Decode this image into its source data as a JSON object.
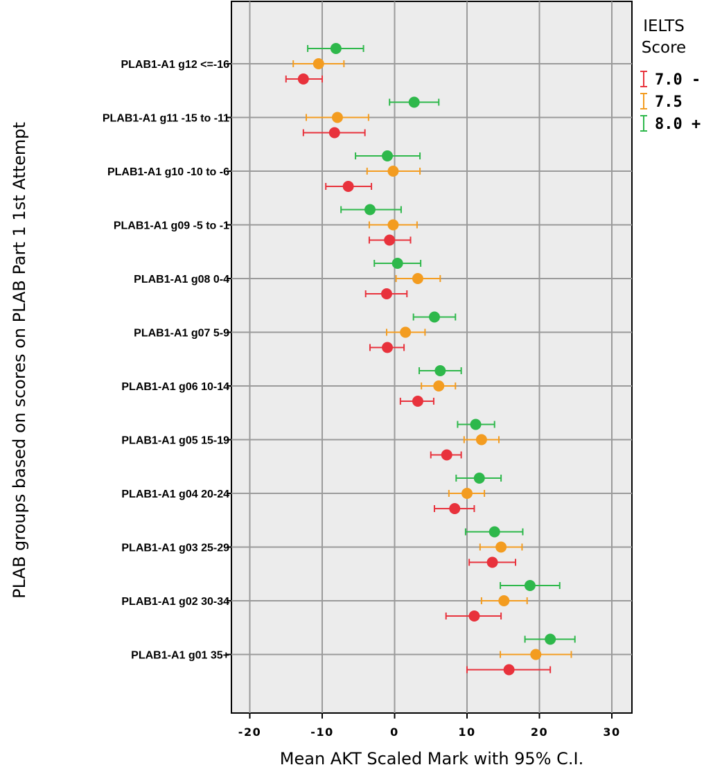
{
  "chart_data": {
    "type": "scatter",
    "subtype": "dot-errorbar",
    "xlabel": "Mean AKT Scaled Mark with 95% C.I.",
    "ylabel": "PLAB groups based on scores on PLAB Part 1 1st Attempt",
    "xlim": [
      -22.8,
      32.5
    ],
    "xticks": [
      -20,
      -10,
      0,
      10,
      20,
      30
    ],
    "xtick_labels": [
      "-20",
      "-10",
      "0",
      "10",
      "20",
      "30"
    ],
    "grid": true,
    "legend": {
      "title_line1": "IELTS",
      "title_line2": "Score",
      "placement": "right"
    },
    "categories": [
      "PLAB1-A1 g12 <=-16",
      "PLAB1-A1 g11 -15 to -11",
      "PLAB1-A1 g10 -10 to -6",
      "PLAB1-A1 g09 -5 to -1",
      "PLAB1-A1 g08 0-4",
      "PLAB1-A1 g07 5-9",
      "PLAB1-A1 g06 10-14",
      "PLAB1-A1 g05 15-19",
      "PLAB1-A1 g04 20-24",
      "PLAB1-A1 g03 25-29",
      "PLAB1-A1 g02 30-34",
      "PLAB1-A1 g01 35+"
    ],
    "series": [
      {
        "name": "7.0 -",
        "color": "#e8323c",
        "mean": [
          -12.6,
          -8.3,
          -6.4,
          -0.7,
          -1.1,
          -1.0,
          3.2,
          7.2,
          8.3,
          13.5,
          11.0,
          15.8
        ],
        "lower": [
          -15.0,
          -12.6,
          -9.5,
          -3.5,
          -4.0,
          -3.4,
          0.8,
          5.0,
          5.5,
          10.3,
          7.1,
          10.0
        ],
        "upper": [
          -10.0,
          -4.1,
          -3.2,
          2.2,
          1.7,
          1.3,
          5.4,
          9.2,
          11.0,
          16.7,
          14.7,
          21.5
        ]
      },
      {
        "name": "7.5",
        "color": "#f39c20",
        "mean": [
          -10.5,
          -7.9,
          -0.2,
          -0.2,
          3.2,
          1.5,
          6.1,
          12.0,
          10.0,
          14.7,
          15.1,
          19.5
        ],
        "lower": [
          -14.0,
          -12.2,
          -3.8,
          -3.5,
          0.2,
          -1.1,
          3.7,
          9.6,
          7.5,
          11.8,
          12.0,
          14.6
        ],
        "upper": [
          -7.0,
          -3.6,
          3.5,
          3.1,
          6.3,
          4.2,
          8.4,
          14.4,
          12.4,
          17.6,
          18.3,
          24.4
        ]
      },
      {
        "name": "8.0 +",
        "color": "#2eb84b",
        "mean": [
          -8.1,
          2.7,
          -1.0,
          -3.4,
          0.4,
          5.5,
          6.3,
          11.2,
          11.7,
          13.8,
          18.7,
          21.5
        ],
        "lower": [
          -12.0,
          -0.7,
          -5.4,
          -7.4,
          -2.8,
          2.6,
          3.4,
          8.7,
          8.5,
          9.8,
          14.6,
          18.0
        ],
        "upper": [
          -4.3,
          6.1,
          3.5,
          0.9,
          3.6,
          8.4,
          9.2,
          13.8,
          14.7,
          17.7,
          22.8,
          24.9
        ]
      }
    ]
  }
}
